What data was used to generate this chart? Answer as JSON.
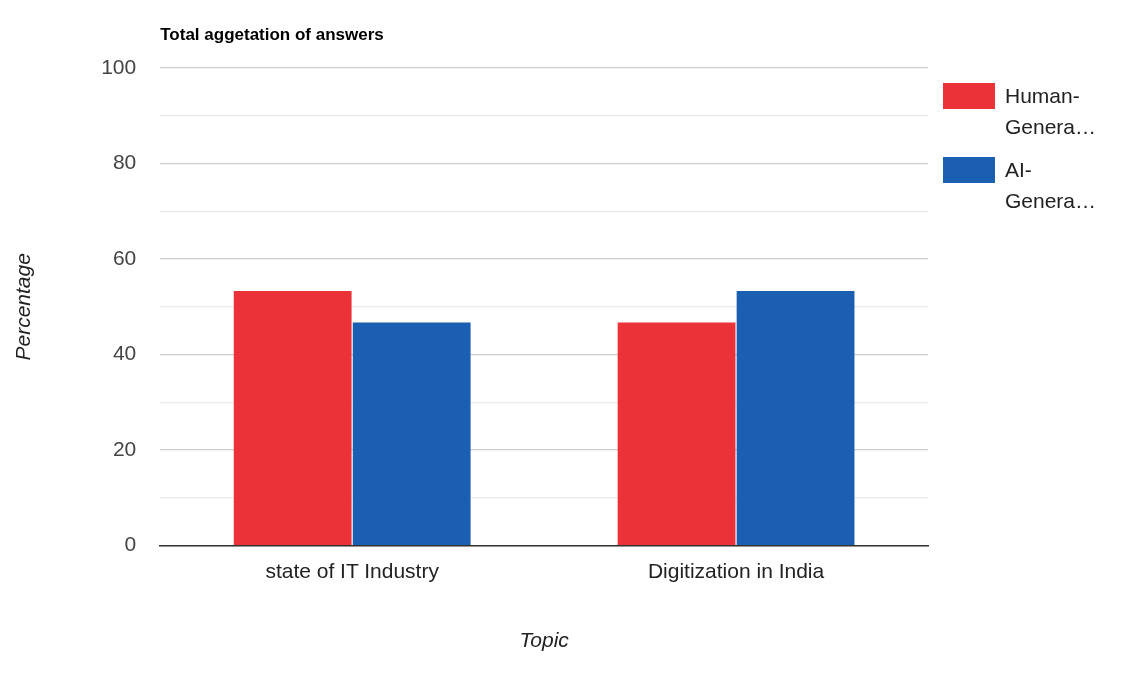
{
  "chart_data": {
    "type": "bar",
    "title": "Total aggetation of answers",
    "xlabel": "Topic",
    "ylabel": "Percentage",
    "categories": [
      "state of IT Industry",
      "Digitization in India"
    ],
    "series": [
      {
        "name": "Human-Genera…",
        "color": "#ec3239",
        "values": [
          53.3,
          46.7
        ]
      },
      {
        "name": "AI-Genera…",
        "color": "#1b5fb3",
        "values": [
          46.7,
          53.3
        ]
      }
    ],
    "ylim": [
      0,
      100
    ],
    "yticks": [
      0,
      {
        "value": 10,
        "label": null
      },
      20,
      {
        "value": 30,
        "label": null
      },
      40,
      {
        "value": 50,
        "label": null
      },
      60,
      {
        "value": 70,
        "label": null
      },
      80,
      {
        "value": 90,
        "label": null
      },
      100
    ],
    "grid": "y",
    "legend": "right"
  }
}
